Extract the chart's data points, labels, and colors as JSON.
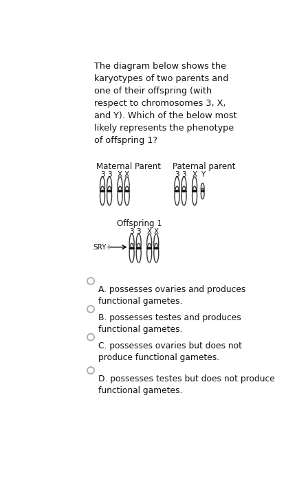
{
  "question_text": "The diagram below shows the\nkaryotypes of two parents and\none of their offspring (with\nrespect to chromosomes 3, X,\nand Y). Which of the below most\nlikely represents the phenotype\nof offspring 1?",
  "maternal_label": "Maternal Parent",
  "paternal_label": "Paternal parent",
  "offspring_label": "Offspring 1",
  "maternal_chromosomes": [
    "3",
    "3",
    "X",
    "X"
  ],
  "paternal_chromosomes": [
    "3",
    "3",
    "X",
    "Y"
  ],
  "offspring_chromosomes": [
    "3",
    "3",
    "X",
    "X"
  ],
  "sry_label": "SRY+",
  "options": [
    "A. possesses ovaries and produces\nfunctional gametes.",
    "B. possesses testes and produces\nfunctional gametes.",
    "C. possesses ovaries but does not\nproduce functional gametes.",
    "D. possesses testes but does not produce\nfunctional gametes."
  ],
  "bg_color": "#ffffff",
  "text_color": "#111111",
  "chrom_facecolor": "#ffffff",
  "chrom_edgecolor": "#333333",
  "centromere_color": "#111111",
  "option_circle_color": "#aaaaaa"
}
